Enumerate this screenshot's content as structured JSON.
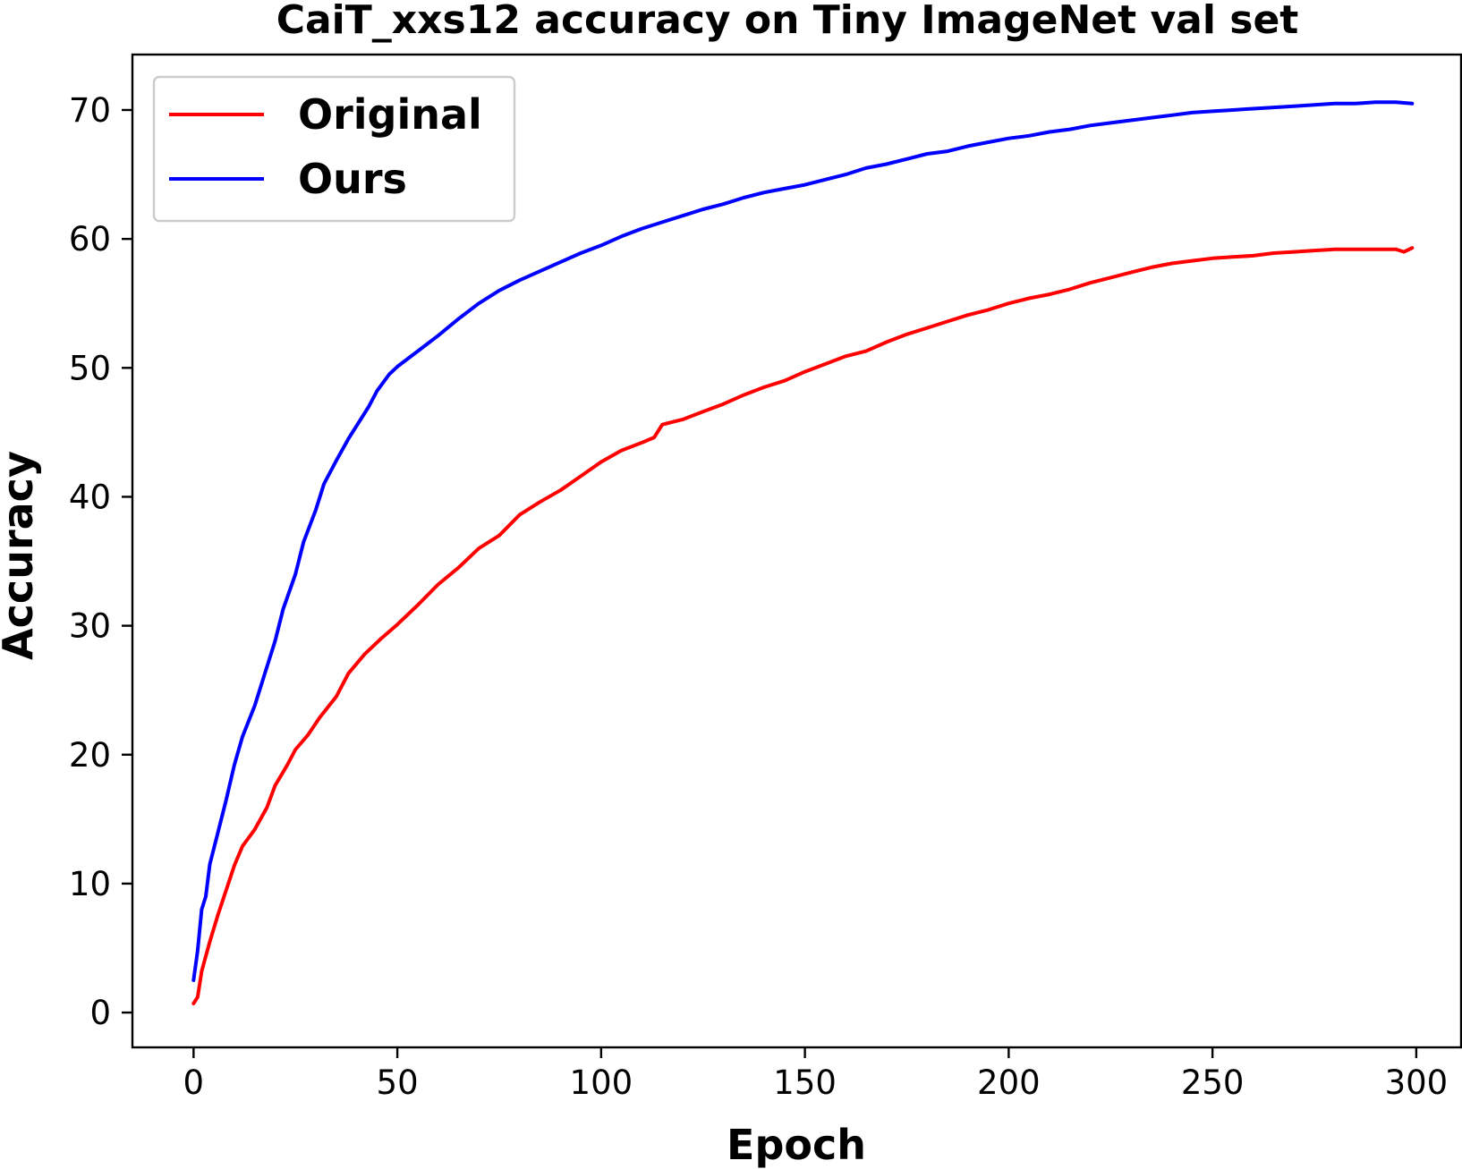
{
  "chart_data": {
    "type": "line",
    "title": "CaiT_xxs12 accuracy on Tiny ImageNet val set",
    "xlabel": "Epoch",
    "ylabel": "Accuracy",
    "xlim": [
      -15,
      311
    ],
    "ylim": [
      -2.7,
      74.3
    ],
    "xticks": [
      0,
      50,
      100,
      150,
      200,
      250,
      300
    ],
    "yticks": [
      0,
      10,
      20,
      30,
      40,
      50,
      60,
      70
    ],
    "grid": false,
    "legend": {
      "position": "top-left"
    },
    "series": [
      {
        "name": "Original",
        "color": "#ff0000",
        "points": [
          [
            0,
            0.7
          ],
          [
            1,
            1.2
          ],
          [
            2,
            3.2
          ],
          [
            4,
            5.5
          ],
          [
            6,
            7.6
          ],
          [
            8,
            9.5
          ],
          [
            10,
            11.4
          ],
          [
            12,
            12.9
          ],
          [
            15,
            14.2
          ],
          [
            18,
            15.9
          ],
          [
            20,
            17.6
          ],
          [
            23,
            19.2
          ],
          [
            25,
            20.4
          ],
          [
            28,
            21.5
          ],
          [
            31,
            22.9
          ],
          [
            35,
            24.5
          ],
          [
            38,
            26.3
          ],
          [
            42,
            27.8
          ],
          [
            46,
            29.0
          ],
          [
            50,
            30.1
          ],
          [
            55,
            31.6
          ],
          [
            60,
            33.2
          ],
          [
            65,
            34.5
          ],
          [
            70,
            36.0
          ],
          [
            75,
            37.0
          ],
          [
            80,
            38.6
          ],
          [
            85,
            39.6
          ],
          [
            90,
            40.5
          ],
          [
            95,
            41.6
          ],
          [
            100,
            42.7
          ],
          [
            105,
            43.6
          ],
          [
            110,
            44.2
          ],
          [
            113,
            44.6
          ],
          [
            115,
            45.6
          ],
          [
            120,
            46.0
          ],
          [
            125,
            46.6
          ],
          [
            130,
            47.2
          ],
          [
            135,
            47.9
          ],
          [
            140,
            48.5
          ],
          [
            145,
            49.0
          ],
          [
            150,
            49.7
          ],
          [
            155,
            50.3
          ],
          [
            160,
            50.9
          ],
          [
            165,
            51.3
          ],
          [
            170,
            52.0
          ],
          [
            175,
            52.6
          ],
          [
            180,
            53.1
          ],
          [
            185,
            53.6
          ],
          [
            190,
            54.1
          ],
          [
            195,
            54.5
          ],
          [
            200,
            55.0
          ],
          [
            205,
            55.4
          ],
          [
            210,
            55.7
          ],
          [
            215,
            56.1
          ],
          [
            220,
            56.6
          ],
          [
            225,
            57.0
          ],
          [
            230,
            57.4
          ],
          [
            235,
            57.8
          ],
          [
            240,
            58.1
          ],
          [
            245,
            58.3
          ],
          [
            250,
            58.5
          ],
          [
            255,
            58.6
          ],
          [
            260,
            58.7
          ],
          [
            265,
            58.9
          ],
          [
            270,
            59.0
          ],
          [
            275,
            59.1
          ],
          [
            280,
            59.2
          ],
          [
            285,
            59.2
          ],
          [
            290,
            59.2
          ],
          [
            295,
            59.2
          ],
          [
            297,
            59.0
          ],
          [
            299,
            59.3
          ]
        ]
      },
      {
        "name": "Ours",
        "color": "#0000ff",
        "points": [
          [
            0,
            2.5
          ],
          [
            1,
            4.8
          ],
          [
            2,
            8.0
          ],
          [
            3,
            9.0
          ],
          [
            4,
            11.5
          ],
          [
            6,
            14.0
          ],
          [
            8,
            16.5
          ],
          [
            10,
            19.2
          ],
          [
            12,
            21.4
          ],
          [
            15,
            23.8
          ],
          [
            18,
            26.8
          ],
          [
            20,
            28.8
          ],
          [
            22,
            31.3
          ],
          [
            25,
            34.0
          ],
          [
            27,
            36.5
          ],
          [
            30,
            39.0
          ],
          [
            32,
            41.0
          ],
          [
            35,
            42.8
          ],
          [
            38,
            44.5
          ],
          [
            40,
            45.5
          ],
          [
            43,
            47.0
          ],
          [
            45,
            48.2
          ],
          [
            48,
            49.5
          ],
          [
            50,
            50.1
          ],
          [
            55,
            51.3
          ],
          [
            60,
            52.5
          ],
          [
            65,
            53.8
          ],
          [
            70,
            55.0
          ],
          [
            75,
            56.0
          ],
          [
            80,
            56.8
          ],
          [
            85,
            57.5
          ],
          [
            90,
            58.2
          ],
          [
            95,
            58.9
          ],
          [
            100,
            59.5
          ],
          [
            105,
            60.2
          ],
          [
            110,
            60.8
          ],
          [
            115,
            61.3
          ],
          [
            120,
            61.8
          ],
          [
            125,
            62.3
          ],
          [
            130,
            62.7
          ],
          [
            135,
            63.2
          ],
          [
            140,
            63.6
          ],
          [
            145,
            63.9
          ],
          [
            150,
            64.2
          ],
          [
            155,
            64.6
          ],
          [
            160,
            65.0
          ],
          [
            165,
            65.5
          ],
          [
            170,
            65.8
          ],
          [
            175,
            66.2
          ],
          [
            180,
            66.6
          ],
          [
            185,
            66.8
          ],
          [
            190,
            67.2
          ],
          [
            195,
            67.5
          ],
          [
            200,
            67.8
          ],
          [
            205,
            68.0
          ],
          [
            210,
            68.3
          ],
          [
            215,
            68.5
          ],
          [
            220,
            68.8
          ],
          [
            225,
            69.0
          ],
          [
            230,
            69.2
          ],
          [
            235,
            69.4
          ],
          [
            240,
            69.6
          ],
          [
            245,
            69.8
          ],
          [
            250,
            69.9
          ],
          [
            255,
            70.0
          ],
          [
            260,
            70.1
          ],
          [
            265,
            70.2
          ],
          [
            270,
            70.3
          ],
          [
            275,
            70.4
          ],
          [
            280,
            70.5
          ],
          [
            285,
            70.5
          ],
          [
            290,
            70.6
          ],
          [
            295,
            70.6
          ],
          [
            299,
            70.5
          ]
        ]
      }
    ]
  }
}
